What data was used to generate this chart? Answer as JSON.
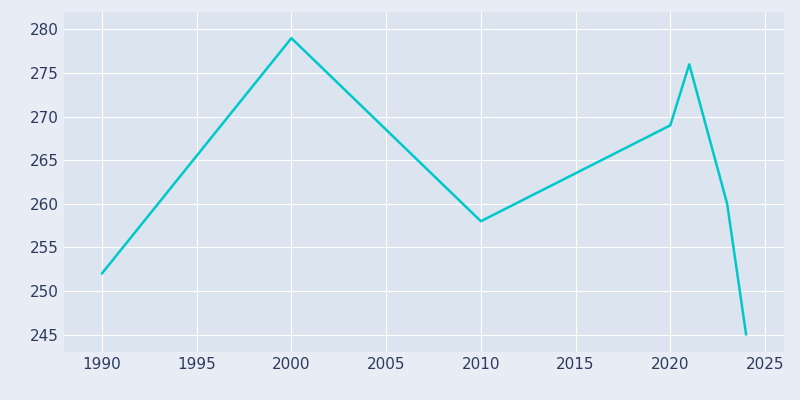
{
  "years": [
    1990,
    2000,
    2010,
    2020,
    2021,
    2023,
    2024
  ],
  "population": [
    252,
    279,
    258,
    269,
    276,
    260,
    245
  ],
  "line_color": "#00c8c8",
  "background_color": "#e8edf5",
  "plot_bg_color": "#dce4f0",
  "grid_color": "#ffffff",
  "text_color": "#2d3a5e",
  "xlim": [
    1988,
    2026
  ],
  "ylim": [
    243,
    282
  ],
  "xticks": [
    1990,
    1995,
    2000,
    2005,
    2010,
    2015,
    2020,
    2025
  ],
  "yticks": [
    245,
    250,
    255,
    260,
    265,
    270,
    275,
    280
  ],
  "line_width": 1.8,
  "figsize": [
    8.0,
    4.0
  ],
  "dpi": 100,
  "tick_labelsize": 11
}
